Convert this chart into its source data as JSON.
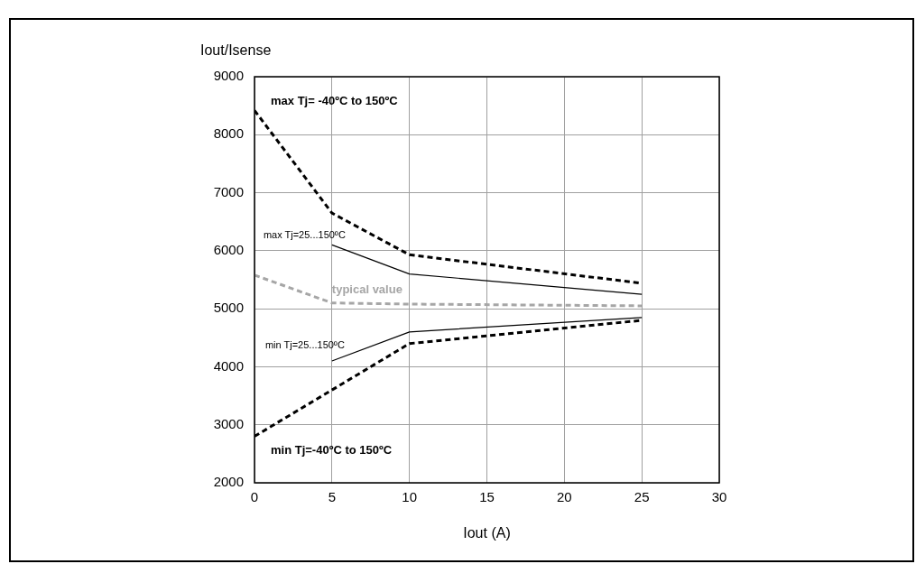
{
  "chart_data": {
    "type": "line",
    "xlabel": "Iout (A)",
    "ylabel": "Iout/Isense",
    "xlim": [
      0,
      30
    ],
    "xticks": [
      0,
      5,
      10,
      15,
      20,
      25,
      30
    ],
    "ylim": [
      2000,
      9000
    ],
    "yticks": [
      2000,
      3000,
      4000,
      5000,
      6000,
      7000,
      8000,
      9000
    ],
    "grid": true,
    "legend": false,
    "marker": "none",
    "series": [
      {
        "name": "max Tj= -40ºC to 150ºC",
        "color": "#000000",
        "line_style": "dashed",
        "x": [
          0,
          5,
          10,
          25
        ],
        "values": [
          8420,
          6650,
          5930,
          5440
        ]
      },
      {
        "name": "max Tj=25...150ºC",
        "color": "#000000",
        "line_style": "solid",
        "x": [
          5,
          10,
          25
        ],
        "values": [
          6100,
          5600,
          5250
        ]
      },
      {
        "name": "typical value",
        "color": "#a6a6a6",
        "line_style": "dashed",
        "x": [
          0,
          5,
          10,
          25
        ],
        "values": [
          5580,
          5100,
          5080,
          5050
        ]
      },
      {
        "name": "min Tj=25...150ºC",
        "color": "#000000",
        "line_style": "solid",
        "x": [
          5,
          10,
          25
        ],
        "values": [
          4100,
          4600,
          4850
        ]
      },
      {
        "name": "min Tj=-40ºC to 150ºC",
        "color": "#000000",
        "line_style": "dashed",
        "x": [
          0,
          5,
          10,
          25
        ],
        "values": [
          2800,
          3600,
          4400,
          4800
        ]
      }
    ]
  }
}
